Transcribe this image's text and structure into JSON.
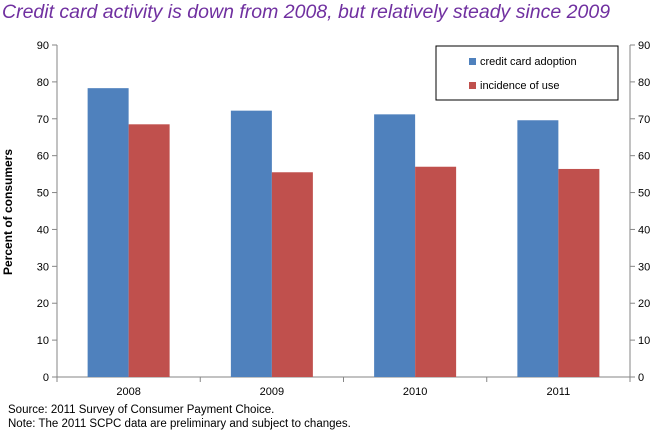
{
  "title": "Credit card activity is down from 2008, but relatively steady since 2009",
  "notes": {
    "source": "Source: 2011 Survey of Consumer Payment Choice.",
    "note": "Note: The 2011 SCPC data are preliminary and subject to changes."
  },
  "colors": {
    "title": "#7030A0",
    "credit_card_adoption": "#4F81BD",
    "incidence_of_use": "#C0504D"
  },
  "chart_data": {
    "type": "bar",
    "categories": [
      "2008",
      "2009",
      "2010",
      "2011"
    ],
    "series": [
      {
        "name": "credit card adoption",
        "values": [
          78.3,
          72.2,
          71.2,
          69.6
        ]
      },
      {
        "name": "incidence of use",
        "values": [
          68.5,
          55.5,
          57.0,
          56.4
        ]
      }
    ],
    "title": "Credit card activity is down from 2008, but relatively steady since 2009",
    "xlabel": "",
    "ylabel": "Percent of  consumers",
    "ylim": [
      0,
      90
    ],
    "yticks": [
      "0",
      "10",
      "20",
      "30",
      "40",
      "50",
      "60",
      "70",
      "80",
      "90"
    ],
    "secondary_y_axis": true,
    "grid": false,
    "legend_position": "top-right"
  }
}
